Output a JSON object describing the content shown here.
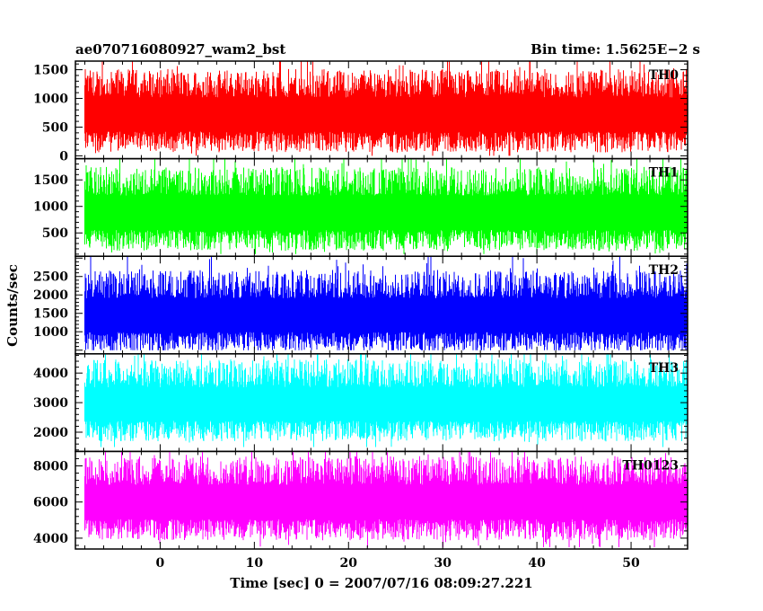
{
  "chart_data": {
    "type": "line",
    "title_left": "ae070716080927_wam2_bst",
    "title_right": "Bin time: 1.5625E−2 s",
    "xlabel": "Time [sec] 0 = 2007/07/16 08:09:27.221",
    "ylabel": "Counts/sec",
    "x_range": [
      -9.0,
      56.0
    ],
    "x_data_range": [
      -8.0,
      56.0
    ],
    "x_ticks": [
      0,
      10,
      20,
      30,
      40,
      50
    ],
    "x_tick_labels": [
      "0",
      "10",
      "20",
      "30",
      "40",
      "50"
    ],
    "bin_time": 0.015625,
    "grid": false,
    "panels": [
      {
        "name": "TH0",
        "color": "#ff0000",
        "ylim": [
          -50,
          1650
        ],
        "yticks": [
          0,
          500,
          1000,
          1500
        ],
        "ytick_labels": [
          "0",
          "500",
          "1000",
          "1500"
        ],
        "mean": 720,
        "min": 0,
        "max": 1650
      },
      {
        "name": "TH1",
        "color": "#00ff00",
        "ylim": [
          60,
          1900
        ],
        "yticks": [
          500,
          1000,
          1500
        ],
        "ytick_labels": [
          "500",
          "1000",
          "1500"
        ],
        "mean": 880,
        "min": 100,
        "max": 1900
      },
      {
        "name": "TH2",
        "color": "#0000ff",
        "ylim": [
          400,
          3050
        ],
        "yticks": [
          1000,
          1500,
          2000,
          2500
        ],
        "ytick_labels": [
          "1000",
          "1500",
          "2000",
          "2500"
        ],
        "mean": 1450,
        "min": 500,
        "max": 3050
      },
      {
        "name": "TH3",
        "color": "#00ffff",
        "ylim": [
          1350,
          4650
        ],
        "yticks": [
          2000,
          3000,
          4000
        ],
        "ytick_labels": [
          "2000",
          "3000",
          "4000"
        ],
        "mean": 2950,
        "min": 1500,
        "max": 4650
      },
      {
        "name": "TH0123",
        "color": "#ff00ff",
        "ylim": [
          3400,
          8800
        ],
        "yticks": [
          4000,
          6000,
          8000
        ],
        "ytick_labels": [
          "4000",
          "6000",
          "8000"
        ],
        "mean": 6000,
        "min": 3500,
        "max": 8800
      }
    ]
  }
}
